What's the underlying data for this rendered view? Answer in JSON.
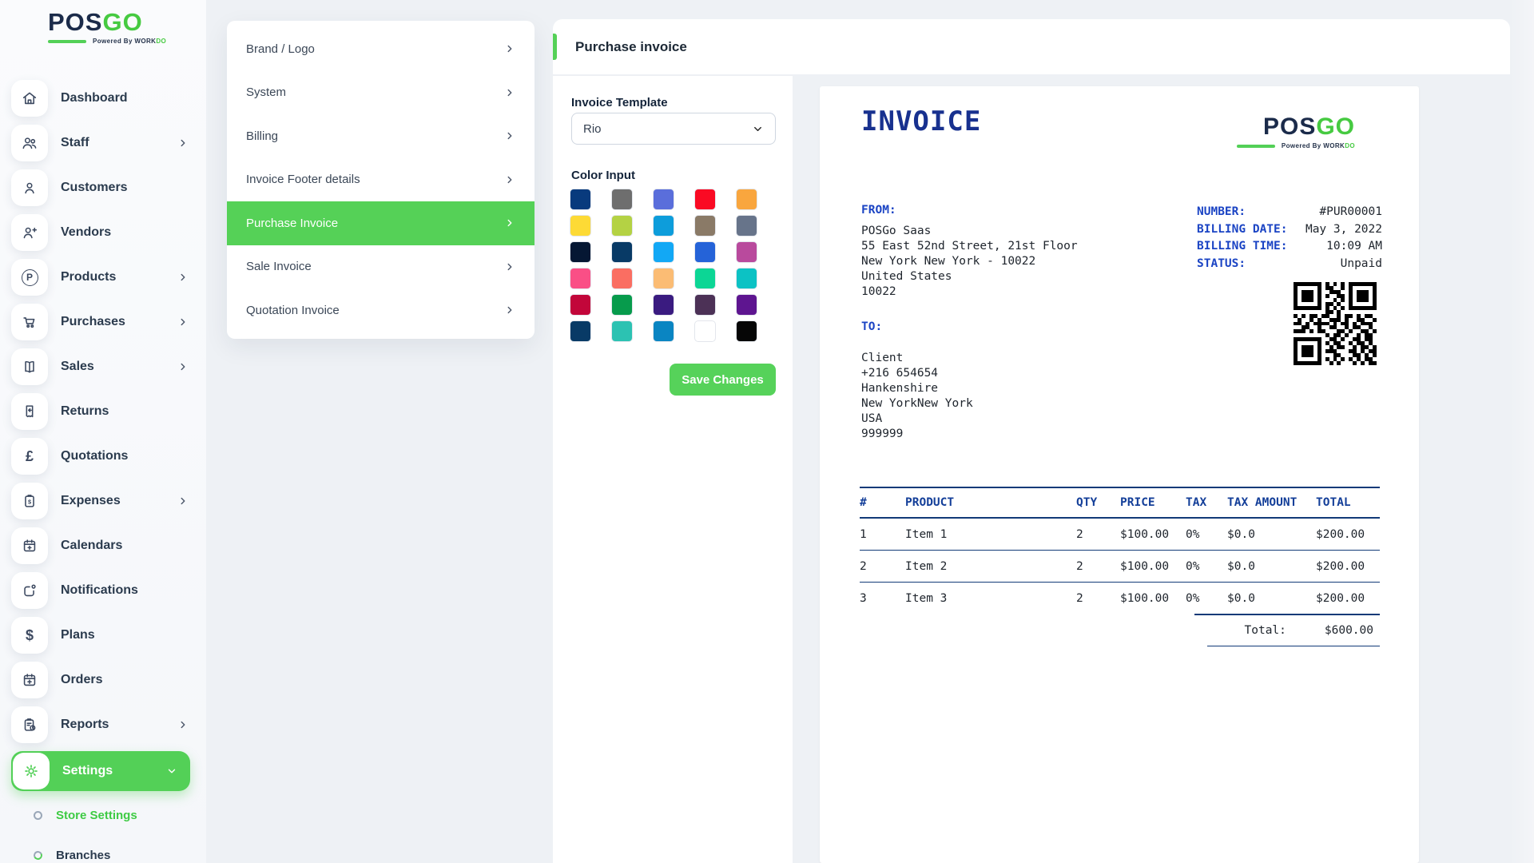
{
  "brand": {
    "pos": "POS",
    "go": "GO",
    "tagline_prefix": "Powered By",
    "tagline_dark": "WORK",
    "tagline_green": "DO"
  },
  "sidebar": {
    "items": [
      {
        "label": "Dashboard"
      },
      {
        "label": "Staff"
      },
      {
        "label": "Customers"
      },
      {
        "label": "Vendors"
      },
      {
        "label": "Products"
      },
      {
        "label": "Purchases"
      },
      {
        "label": "Sales"
      },
      {
        "label": "Returns"
      },
      {
        "label": "Quotations"
      },
      {
        "label": "Expenses"
      },
      {
        "label": "Calendars"
      },
      {
        "label": "Notifications"
      },
      {
        "label": "Plans"
      },
      {
        "label": "Orders"
      },
      {
        "label": "Reports"
      }
    ],
    "settings_label": "Settings",
    "sub_items": [
      {
        "label": "Store Settings"
      },
      {
        "label": "Branches"
      }
    ]
  },
  "settings_menu": {
    "items": [
      {
        "label": "Brand / Logo"
      },
      {
        "label": "System"
      },
      {
        "label": "Billing"
      },
      {
        "label": "Invoice Footer details"
      },
      {
        "label": "Purchase Invoice"
      },
      {
        "label": "Sale Invoice"
      },
      {
        "label": "Quotation Invoice"
      }
    ]
  },
  "page": {
    "title": "Purchase invoice"
  },
  "form": {
    "template_label": "Invoice Template",
    "template_value": "Rio",
    "color_label": "Color Input",
    "save_label": "Save Changes",
    "accent_green": "#55d157",
    "colors": [
      "#083a7d",
      "#6e6e6e",
      "#5a6edb",
      "#fa0a23",
      "#f9a63e",
      "#fdda35",
      "#b4d244",
      "#0d9ddb",
      "#8a7a67",
      "#67748a",
      "#051733",
      "#083a66",
      "#12a8f5",
      "#2563d8",
      "#b94a9d",
      "#fa4f86",
      "#fa6e62",
      "#fbbc74",
      "#0cd695",
      "#0cc2c4",
      "#c2063a",
      "#079b4c",
      "#3a1b80",
      "#4c3156",
      "#5e1590",
      "#083a66",
      "#2cc2b2",
      "#0a85c2",
      "#ffffff",
      "#060606"
    ]
  },
  "invoice": {
    "title": "INVOICE",
    "from_label": "FROM:",
    "from_lines": [
      "POSGo Saas",
      "55 East 52nd Street, 21st Floor",
      "New York New York - 10022",
      "United States",
      "10022"
    ],
    "meta": [
      {
        "label": "NUMBER:",
        "value": "#PUR00001"
      },
      {
        "label": "BILLING DATE:",
        "value": "May 3, 2022"
      },
      {
        "label": "BILLING TIME:",
        "value": "10:09 AM"
      },
      {
        "label": "STATUS:",
        "value": "Unpaid"
      }
    ],
    "to_label": "TO:",
    "to_lines": [
      "Client",
      "+216 654654",
      "Hankenshire",
      "New YorkNew York",
      "USA",
      "999999"
    ],
    "table": {
      "headers": [
        "#",
        "PRODUCT",
        "QTY",
        "PRICE",
        "TAX",
        "TAX AMOUNT",
        "TOTAL"
      ],
      "rows": [
        [
          "1",
          "Item 1",
          "2",
          "$100.00",
          "0%",
          "$0.0",
          "$200.00"
        ],
        [
          "2",
          "Item 2",
          "2",
          "$100.00",
          "0%",
          "$0.0",
          "$200.00"
        ],
        [
          "3",
          "Item 3",
          "2",
          "$100.00",
          "0%",
          "$0.0",
          "$200.00"
        ]
      ],
      "total_label": "Total:",
      "total_value": "$600.00"
    },
    "qr_matrix": [
      "111111101010101111111",
      "100000101100101000001",
      "101110100111001011101",
      "101110101001101011101",
      "101110100010101011101",
      "100000101101001000001",
      "111111101010101111111",
      "000000001101000000000",
      "101011011001011010110",
      "010010100111010011001",
      "110101111010110101110",
      "001100100110010110010",
      "111010110001101001101",
      "000000001011010010110",
      "111111100110100110110",
      "100000101011001011010",
      "101110100101100101101",
      "101110101110001101011",
      "101110100011000110101",
      "100000101010101010110",
      "111111100101000101011"
    ]
  }
}
